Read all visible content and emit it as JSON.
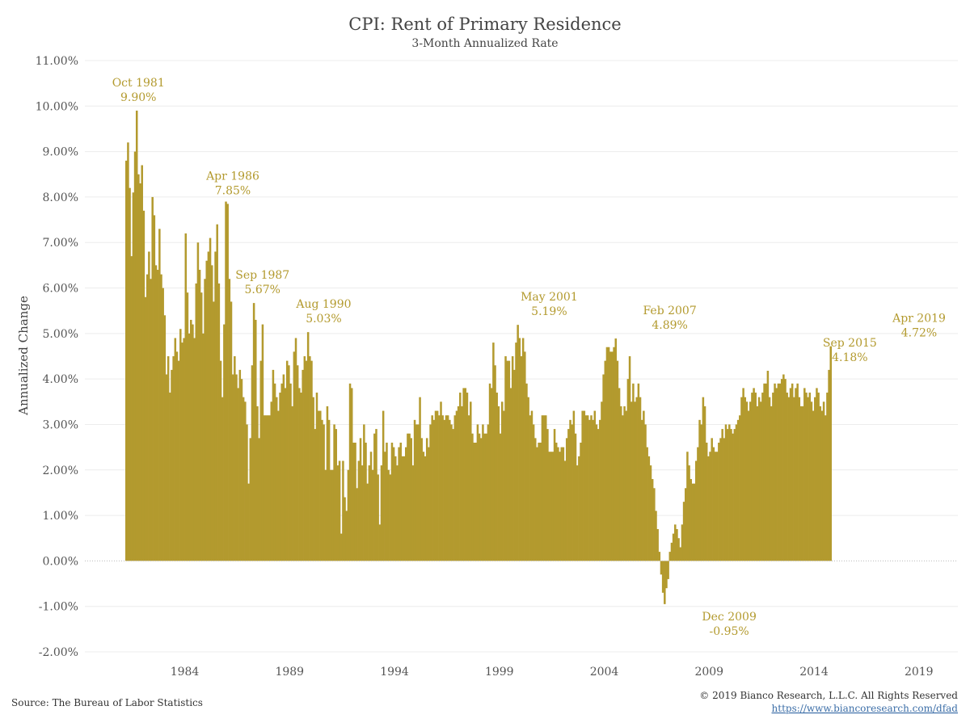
{
  "colors": {
    "bar": "#b39a2e",
    "annotation": "#b39a2e",
    "grid": "#ececec",
    "text": "#555555"
  },
  "chart_data": {
    "type": "bar",
    "title": "CPI: Rent of Primary Residence",
    "subtitle": "3-Month Annualized Rate",
    "ylabel": "Annualized Change",
    "xlabel": "",
    "ylim": [
      -2,
      11
    ],
    "y_ticks": [
      -2,
      -1,
      0,
      1,
      2,
      3,
      4,
      5,
      6,
      7,
      8,
      9,
      10,
      11
    ],
    "y_tick_labels": [
      "-2.00%",
      "-1.00%",
      "0.00%",
      "1.00%",
      "2.00%",
      "3.00%",
      "4.00%",
      "5.00%",
      "6.00%",
      "7.00%",
      "8.00%",
      "9.00%",
      "10.00%",
      "11.00%"
    ],
    "x_start": "1981-03",
    "x_ticks": [
      "1984",
      "1989",
      "1994",
      "1999",
      "2004",
      "2009",
      "2014",
      "2019"
    ],
    "grid": true,
    "legend": "none",
    "series": [
      {
        "frequency": "monthly",
        "values": [
          8.8,
          9.2,
          8.2,
          6.7,
          8.1,
          9.0,
          9.9,
          8.5,
          8.3,
          8.7,
          7.7,
          5.8,
          6.3,
          6.8,
          6.2,
          8.0,
          7.6,
          6.5,
          6.4,
          7.3,
          6.3,
          6.0,
          5.4,
          4.1,
          4.5,
          3.7,
          4.2,
          4.5,
          4.9,
          4.6,
          4.4,
          5.1,
          4.8,
          4.9,
          7.2,
          5.9,
          5.0,
          5.3,
          5.2,
          4.9,
          6.1,
          7.0,
          6.4,
          5.9,
          5.0,
          6.2,
          6.6,
          6.8,
          7.1,
          6.5,
          5.7,
          6.8,
          7.4,
          6.1,
          4.4,
          3.6,
          5.2,
          7.9,
          7.85,
          6.2,
          5.7,
          4.1,
          4.5,
          4.1,
          3.8,
          4.2,
          4.0,
          3.6,
          3.5,
          3.0,
          1.7,
          2.7,
          4.3,
          5.67,
          5.3,
          3.4,
          2.7,
          4.4,
          5.2,
          3.2,
          3.2,
          3.2,
          3.2,
          3.5,
          4.2,
          3.9,
          3.6,
          3.3,
          3.7,
          3.9,
          4.1,
          3.8,
          4.4,
          4.3,
          3.9,
          3.4,
          4.6,
          4.9,
          4.3,
          3.8,
          3.7,
          4.2,
          4.5,
          4.4,
          5.03,
          4.5,
          4.4,
          3.6,
          2.9,
          3.7,
          3.3,
          3.3,
          3.1,
          3.0,
          2.0,
          3.4,
          3.1,
          2.0,
          2.0,
          3.0,
          2.9,
          2.1,
          2.2,
          0.6,
          2.2,
          1.4,
          1.1,
          2.0,
          3.9,
          3.8,
          2.6,
          2.6,
          1.6,
          2.2,
          2.7,
          2.1,
          3.0,
          2.6,
          1.7,
          2.1,
          2.4,
          2.0,
          2.8,
          2.9,
          1.9,
          0.8,
          2.1,
          3.3,
          2.4,
          2.6,
          2.0,
          1.9,
          2.6,
          2.5,
          2.3,
          2.1,
          2.5,
          2.6,
          2.3,
          2.3,
          2.5,
          2.8,
          2.8,
          2.7,
          2.1,
          3.1,
          3.0,
          3.0,
          3.6,
          2.7,
          2.4,
          2.3,
          2.7,
          2.5,
          3.0,
          3.2,
          3.1,
          3.3,
          3.3,
          3.2,
          3.5,
          3.2,
          3.1,
          3.2,
          3.2,
          3.1,
          3.0,
          2.9,
          3.2,
          3.3,
          3.4,
          3.7,
          3.4,
          3.8,
          3.8,
          3.7,
          3.2,
          3.5,
          2.8,
          2.6,
          2.6,
          3.0,
          2.8,
          2.7,
          3.0,
          2.8,
          2.8,
          3.0,
          3.9,
          3.8,
          4.8,
          4.3,
          3.7,
          3.4,
          2.8,
          3.5,
          3.3,
          4.5,
          4.4,
          4.4,
          3.8,
          4.5,
          4.2,
          4.8,
          5.19,
          4.9,
          4.5,
          4.9,
          4.6,
          3.9,
          3.6,
          3.2,
          3.3,
          3.0,
          2.7,
          2.5,
          2.6,
          2.6,
          3.2,
          3.2,
          3.2,
          2.9,
          2.4,
          2.4,
          2.4,
          2.9,
          2.6,
          2.5,
          2.4,
          2.5,
          2.5,
          2.2,
          2.7,
          2.9,
          3.1,
          3.0,
          3.3,
          2.8,
          2.1,
          2.3,
          2.6,
          3.3,
          3.3,
          3.2,
          3.2,
          3.1,
          3.2,
          3.1,
          3.3,
          3.0,
          2.9,
          3.1,
          3.5,
          4.1,
          4.4,
          4.7,
          4.7,
          4.6,
          4.6,
          4.7,
          4.89,
          4.4,
          3.8,
          3.4,
          3.2,
          3.4,
          3.3,
          4.0,
          4.5,
          3.5,
          3.9,
          3.5,
          3.6,
          3.9,
          3.6,
          3.1,
          3.3,
          3.0,
          2.5,
          2.3,
          2.1,
          1.8,
          1.6,
          1.1,
          0.7,
          0.2,
          -0.3,
          -0.7,
          -0.95,
          -0.6,
          -0.4,
          0.2,
          0.4,
          0.6,
          0.8,
          0.7,
          0.5,
          0.3,
          0.8,
          1.3,
          1.6,
          2.4,
          2.1,
          1.8,
          1.7,
          1.7,
          2.2,
          2.5,
          3.1,
          3.0,
          3.6,
          3.4,
          2.6,
          2.3,
          2.4,
          2.7,
          2.5,
          2.4,
          2.4,
          2.6,
          2.7,
          2.9,
          2.7,
          3.0,
          2.9,
          3.0,
          2.9,
          2.8,
          2.9,
          3.0,
          3.1,
          3.2,
          3.6,
          3.8,
          3.6,
          3.5,
          3.3,
          3.5,
          3.7,
          3.8,
          3.7,
          3.4,
          3.6,
          3.5,
          3.7,
          3.9,
          3.9,
          4.18,
          3.6,
          3.4,
          3.7,
          3.9,
          3.8,
          3.9,
          3.9,
          4.0,
          4.1,
          4.0,
          3.7,
          3.6,
          3.8,
          3.9,
          3.6,
          3.8,
          3.9,
          3.6,
          3.4,
          3.4,
          3.8,
          3.7,
          3.6,
          3.7,
          3.5,
          3.3,
          3.6,
          3.8,
          3.7,
          3.4,
          3.3,
          3.5,
          3.2,
          3.7,
          4.2,
          4.72
        ]
      }
    ],
    "annotations": [
      {
        "period": "Oct 1981",
        "text": "Oct 1981",
        "value_text": "9.90%",
        "y": 9.9
      },
      {
        "period": "Apr 1986",
        "text": "Apr 1986",
        "value_text": "7.85%",
        "y": 7.85
      },
      {
        "period": "Sep 1987",
        "text": "Sep 1987",
        "value_text": "5.67%",
        "y": 5.67
      },
      {
        "period": "Aug 1990",
        "text": "Aug 1990",
        "value_text": "5.03%",
        "y": 5.03
      },
      {
        "period": "May 2001",
        "text": "May 2001",
        "value_text": "5.19%",
        "y": 5.19
      },
      {
        "period": "Feb 2007",
        "text": "Feb 2007",
        "value_text": "4.89%",
        "y": 4.89
      },
      {
        "period": "Dec 2009",
        "text": "Dec 2009",
        "value_text": "-0.95%",
        "y": -0.95
      },
      {
        "period": "Sep 2015",
        "text": "Sep 2015",
        "value_text": "4.18%",
        "y": 4.18
      },
      {
        "period": "Apr 2019",
        "text": "Apr 2019",
        "value_text": "4.72%",
        "y": 4.72
      }
    ]
  },
  "footer": {
    "source": "Source: The Bureau of Labor Statistics",
    "copyright": "© 2019 Bianco Research, L.L.C. All Rights Reserved",
    "link": "https://www.biancoresearch.com/",
    "link_suffix": "dfad"
  }
}
